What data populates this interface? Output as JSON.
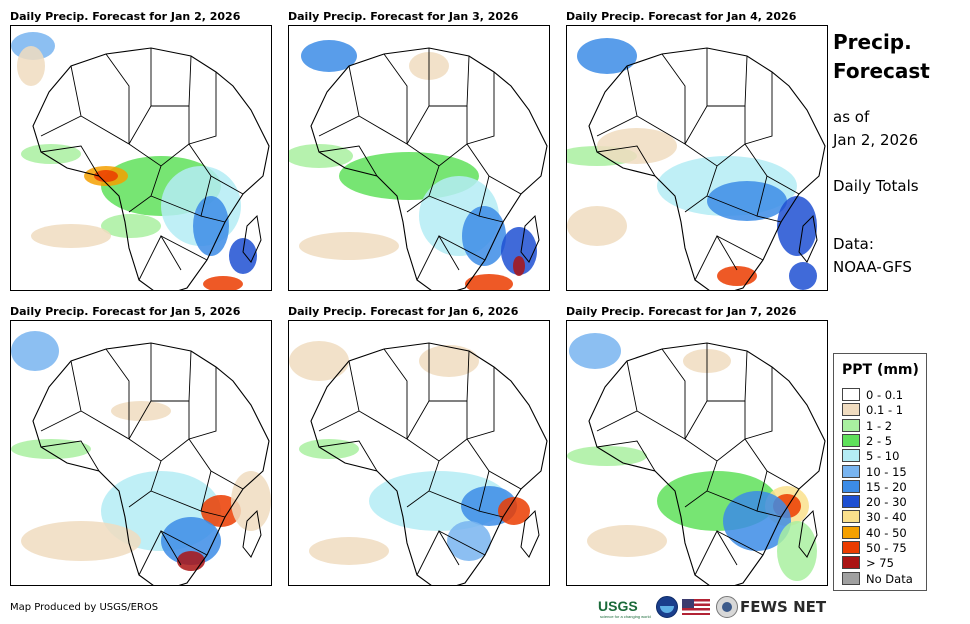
{
  "panels": [
    {
      "title": "Daily Precip. Forecast for Jan 2, 2026"
    },
    {
      "title": "Daily Precip. Forecast for Jan 3, 2026"
    },
    {
      "title": "Daily Precip. Forecast for Jan 4, 2026"
    },
    {
      "title": "Daily Precip. Forecast for Jan 5, 2026"
    },
    {
      "title": "Daily Precip. Forecast for Jan 6, 2026"
    },
    {
      "title": "Daily Precip. Forecast for Jan 7, 2026"
    }
  ],
  "sidebar": {
    "title_line1": "Precip.",
    "title_line2": "Forecast",
    "as_of_label": "as of",
    "as_of_date": "Jan 2, 2026",
    "totals": "Daily Totals",
    "data_label": "Data:",
    "data_source": "NOAA-GFS"
  },
  "legend": {
    "title": "PPT (mm)",
    "items": [
      {
        "label": "0 - 0.1",
        "color": "#ffffff"
      },
      {
        "label": "0.1 - 1",
        "color": "#f0dcc0"
      },
      {
        "label": "1 - 2",
        "color": "#a9f0a0"
      },
      {
        "label": "2 - 5",
        "color": "#5fe05a"
      },
      {
        "label": "5 - 10",
        "color": "#b4ecf5"
      },
      {
        "label": "10 - 15",
        "color": "#78b4f0"
      },
      {
        "label": "15 - 20",
        "color": "#3c8ce6"
      },
      {
        "label": "20 - 30",
        "color": "#1e50d2"
      },
      {
        "label": "30 - 40",
        "color": "#fae08c"
      },
      {
        "label": "40 - 50",
        "color": "#f5a000"
      },
      {
        "label": "50 - 75",
        "color": "#eb3c00"
      },
      {
        "label": "> 75",
        "color": "#aa1414"
      },
      {
        "label": "No Data",
        "color": "#a0a0a0"
      }
    ]
  },
  "footer": {
    "credit": "Map Produced by USGS/EROS",
    "logo_usgs": "USGS",
    "logo_usgs_tagline": "science for a changing world",
    "logo_fews": "FEWS NET"
  }
}
